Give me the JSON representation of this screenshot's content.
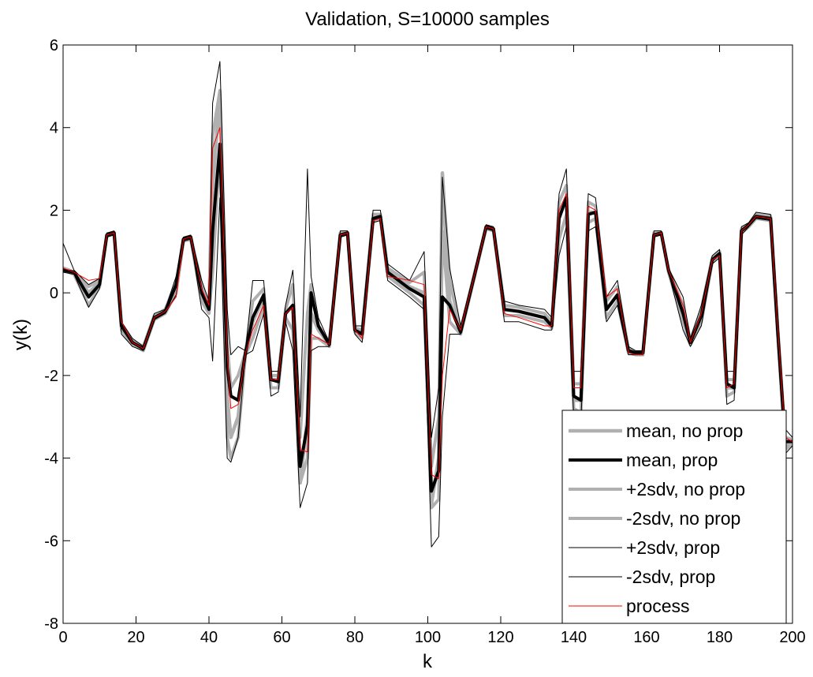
{
  "chart_data": {
    "type": "line",
    "title": "Validation, S=10000 samples",
    "x_label": "k",
    "y_label": "y(k)",
    "x": [
      0,
      3,
      7,
      10,
      12,
      14,
      16,
      19,
      22,
      25,
      28,
      31,
      33,
      35,
      38,
      40,
      41,
      43,
      45,
      46,
      48,
      50,
      52,
      55,
      57,
      59,
      61,
      63,
      65,
      67,
      68,
      70,
      73,
      76,
      78,
      80,
      82,
      85,
      87,
      89,
      95,
      99,
      101,
      103,
      104,
      106,
      109,
      113,
      116,
      118,
      121,
      125,
      132,
      134,
      136,
      138,
      140,
      142,
      144,
      146,
      149,
      152,
      155,
      157,
      159,
      162,
      164,
      166,
      170,
      172,
      175,
      178,
      180,
      182,
      184,
      186,
      188,
      190,
      194,
      196,
      198,
      200
    ],
    "xlim": [
      0,
      200
    ],
    "ylim": [
      -8,
      6
    ],
    "xticks": [
      0,
      20,
      40,
      60,
      80,
      100,
      120,
      140,
      160,
      180,
      200
    ],
    "yticks": [
      -8,
      -6,
      -4,
      -2,
      0,
      2,
      4,
      6
    ],
    "legend_position": "lower right",
    "series": [
      {
        "name": "mean, no prop",
        "color": "#b0b0b0",
        "line_width": 4.5,
        "values": [
          0.6,
          0.5,
          0.0,
          0.25,
          1.4,
          1.45,
          -0.8,
          -1.2,
          -1.35,
          -0.6,
          -0.45,
          0.1,
          1.3,
          1.35,
          0.1,
          -0.45,
          2.5,
          4.85,
          -2.5,
          -3.5,
          -3.0,
          -1.45,
          -0.7,
          -0.1,
          -2.1,
          -2.1,
          -0.5,
          -0.3,
          -4.6,
          -3.0,
          -0.5,
          -0.9,
          -1.25,
          1.4,
          1.45,
          -0.9,
          -1.0,
          1.8,
          1.85,
          0.5,
          0.15,
          0.0,
          -5.1,
          -4.0,
          2.9,
          -0.2,
          -0.95,
          0.5,
          1.6,
          1.55,
          -0.4,
          -0.45,
          -0.6,
          -0.8,
          1.9,
          2.3,
          -2.6,
          -2.6,
          1.95,
          1.95,
          -0.4,
          -0.05,
          -1.4,
          -1.45,
          -1.45,
          1.4,
          1.45,
          0.55,
          -0.5,
          -1.2,
          -0.55,
          0.8,
          0.95,
          -2.3,
          -2.3,
          1.5,
          1.65,
          1.85,
          1.8,
          -1.0,
          -3.7,
          -3.6
        ]
      },
      {
        "name": "mean, prop",
        "color": "#000000",
        "line_width": 4,
        "values": [
          0.55,
          0.5,
          -0.1,
          0.2,
          1.4,
          1.45,
          -0.8,
          -1.2,
          -1.35,
          -0.6,
          -0.45,
          0.2,
          1.3,
          1.35,
          0.0,
          -0.4,
          1.5,
          3.6,
          -1.8,
          -2.5,
          -2.6,
          -1.45,
          -0.6,
          -0.05,
          -2.1,
          -2.15,
          -0.5,
          -0.3,
          -4.2,
          -3.2,
          0.0,
          -0.8,
          -1.25,
          1.4,
          1.45,
          -0.9,
          -1.0,
          1.8,
          1.85,
          0.5,
          0.1,
          -0.1,
          -4.8,
          -4.3,
          -0.1,
          -0.3,
          -0.95,
          0.5,
          1.6,
          1.55,
          -0.4,
          -0.45,
          -0.6,
          -0.8,
          1.8,
          2.3,
          -2.5,
          -2.6,
          1.9,
          1.95,
          -0.4,
          -0.05,
          -1.4,
          -1.45,
          -1.45,
          1.4,
          1.45,
          0.55,
          -0.5,
          -1.2,
          -0.55,
          0.8,
          0.95,
          -2.2,
          -2.3,
          1.5,
          1.65,
          1.85,
          1.8,
          -1.0,
          -3.6,
          -3.6
        ]
      },
      {
        "name": "+2sdv, no prop",
        "color": "#b0b0b0",
        "line_width": 4,
        "values": [
          0.6,
          0.5,
          0.15,
          0.3,
          1.4,
          1.45,
          -0.75,
          -1.15,
          -1.3,
          -0.55,
          -0.4,
          0.25,
          1.3,
          1.35,
          0.2,
          -0.35,
          3.8,
          4.9,
          -1.2,
          -2.3,
          -2.0,
          -1.45,
          -0.2,
          0.1,
          -2.0,
          -2.0,
          -0.4,
          0.2,
          -3.5,
          -0.5,
          0.2,
          -0.8,
          -1.2,
          1.45,
          1.45,
          -0.85,
          -0.9,
          1.9,
          1.9,
          0.6,
          0.25,
          0.5,
          -4.2,
          -3.0,
          2.9,
          0.3,
          -0.9,
          0.55,
          1.6,
          1.55,
          -0.3,
          -0.35,
          -0.5,
          -0.7,
          2.2,
          2.6,
          -2.2,
          -2.2,
          2.2,
          2.1,
          -0.2,
          0.15,
          -1.35,
          -1.45,
          -1.45,
          1.45,
          1.45,
          0.55,
          -0.3,
          -1.15,
          -0.4,
          0.85,
          1.0,
          -2.1,
          -2.1,
          1.55,
          1.65,
          1.9,
          1.85,
          -0.9,
          -3.5,
          -3.55
        ]
      },
      {
        "name": "-2sdv, no prop",
        "color": "#b0b0b0",
        "line_width": 4,
        "values": [
          0.55,
          0.45,
          -0.3,
          0.15,
          1.4,
          1.45,
          -0.9,
          -1.25,
          -1.4,
          -0.65,
          -0.5,
          0.0,
          1.25,
          1.3,
          -0.2,
          -0.5,
          0.5,
          3.5,
          -3.5,
          -4.0,
          -3.5,
          -1.5,
          -1.1,
          -0.3,
          -2.3,
          -2.3,
          -0.6,
          -0.9,
          -4.6,
          -4.0,
          -1.1,
          -1.1,
          -1.3,
          1.4,
          1.45,
          -0.95,
          -1.1,
          1.75,
          1.8,
          0.4,
          0.0,
          -0.3,
          -5.2,
          -5.0,
          1.5,
          -0.7,
          -1.0,
          0.45,
          1.55,
          1.5,
          -0.55,
          -0.55,
          -0.7,
          -0.85,
          1.3,
          1.9,
          -2.8,
          -2.9,
          1.7,
          1.8,
          -0.6,
          -0.2,
          -1.45,
          -1.5,
          -1.5,
          1.4,
          1.45,
          0.5,
          -0.7,
          -1.25,
          -0.7,
          0.75,
          0.9,
          -2.5,
          -2.4,
          1.45,
          1.6,
          1.8,
          1.75,
          -1.1,
          -3.8,
          -3.65
        ]
      },
      {
        "name": "+2sdv, prop",
        "color": "#000000",
        "line_width": 1,
        "values": [
          1.2,
          0.55,
          0.2,
          0.35,
          1.45,
          1.5,
          -0.7,
          -1.1,
          -1.3,
          -0.5,
          -0.4,
          0.4,
          1.35,
          1.4,
          0.3,
          -0.2,
          4.6,
          5.6,
          -0.4,
          -1.5,
          -1.3,
          -1.4,
          0.3,
          0.3,
          -1.9,
          -1.9,
          -0.3,
          0.55,
          -3.0,
          3.0,
          0.4,
          -0.6,
          -1.2,
          1.5,
          1.5,
          -0.8,
          -0.8,
          2.0,
          2.0,
          0.7,
          0.3,
          1.0,
          -3.5,
          -2.3,
          2.8,
          0.6,
          -0.8,
          0.6,
          1.65,
          1.6,
          -0.2,
          -0.3,
          -0.4,
          -0.6,
          2.4,
          3.0,
          -1.9,
          -1.9,
          2.4,
          2.3,
          -0.1,
          0.3,
          -1.3,
          -1.4,
          -1.4,
          1.5,
          1.5,
          0.6,
          -0.1,
          -1.1,
          -0.3,
          0.9,
          1.05,
          -1.9,
          -1.9,
          1.6,
          1.7,
          1.95,
          1.9,
          -0.8,
          -3.3,
          -3.5
        ]
      },
      {
        "name": "-2sdv, prop",
        "color": "#000000",
        "line_width": 1,
        "values": [
          0.5,
          0.45,
          -0.35,
          0.1,
          1.35,
          1.4,
          -1.0,
          -1.3,
          -1.4,
          -0.65,
          -0.5,
          -0.05,
          1.25,
          1.3,
          -0.4,
          -0.6,
          -1.65,
          2.3,
          -4.0,
          -4.1,
          -3.5,
          -1.5,
          -1.4,
          -0.5,
          -2.5,
          -2.4,
          -0.7,
          -1.4,
          -5.2,
          -4.6,
          -1.4,
          -1.3,
          -1.3,
          1.35,
          1.4,
          -1.0,
          -1.2,
          1.7,
          1.75,
          0.3,
          -0.1,
          -0.4,
          -6.15,
          -5.9,
          -3.0,
          -1.0,
          -1.0,
          0.4,
          1.55,
          1.5,
          -0.7,
          -0.7,
          -0.9,
          -0.9,
          0.9,
          1.6,
          -3.0,
          -3.1,
          1.5,
          1.6,
          -0.7,
          -0.3,
          -1.5,
          -1.5,
          -1.5,
          1.35,
          1.4,
          0.5,
          -0.9,
          -1.3,
          -0.8,
          0.7,
          0.85,
          -2.7,
          -2.6,
          1.4,
          1.6,
          1.8,
          1.75,
          -1.2,
          -3.9,
          -3.7
        ]
      },
      {
        "name": "process",
        "color": "#ff0000",
        "line_width": 1,
        "values": [
          0.6,
          0.5,
          0.3,
          0.35,
          1.4,
          1.45,
          -0.7,
          -1.2,
          -1.35,
          -0.6,
          -0.45,
          -0.1,
          1.3,
          1.35,
          0.1,
          -0.3,
          3.5,
          4.0,
          -1.5,
          -2.8,
          -2.7,
          -1.45,
          -0.9,
          -0.3,
          -2.1,
          -2.1,
          -0.5,
          -0.35,
          -3.8,
          -3.85,
          -1.0,
          -1.1,
          -1.25,
          1.4,
          1.45,
          -0.9,
          -1.1,
          1.75,
          1.8,
          0.4,
          0.3,
          0.2,
          -4.4,
          -4.5,
          -2.0,
          -0.4,
          -0.9,
          0.5,
          1.6,
          1.55,
          -0.5,
          -0.6,
          -0.8,
          -0.8,
          2.0,
          2.4,
          -2.3,
          -2.3,
          2.1,
          2.0,
          -0.1,
          0.1,
          -1.45,
          -1.5,
          -1.5,
          1.4,
          1.45,
          0.55,
          -0.3,
          -1.2,
          -0.5,
          0.8,
          0.9,
          -2.3,
          -2.2,
          1.5,
          1.65,
          1.85,
          1.8,
          -0.9,
          -3.5,
          -3.6
        ]
      }
    ]
  }
}
